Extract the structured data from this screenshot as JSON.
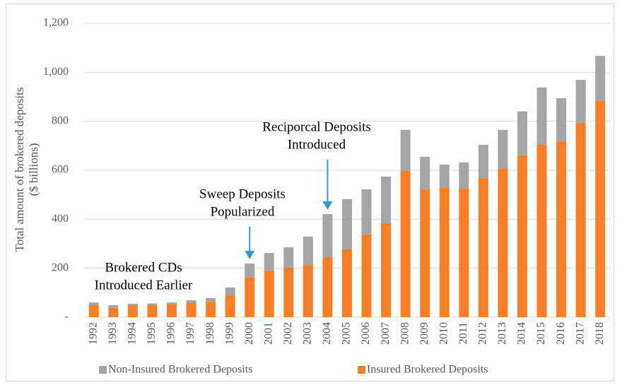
{
  "chart_data": {
    "type": "bar",
    "stacked": true,
    "y_label": [
      "Total amount of brokered deposits",
      "($ billions)"
    ],
    "categories": [
      "1992",
      "1993",
      "1994",
      "1995",
      "1996",
      "1997",
      "1998",
      "1999",
      "2000",
      "2001",
      "2002",
      "2003",
      "2004",
      "2005",
      "2006",
      "2007",
      "2008",
      "2009",
      "2010",
      "2011",
      "2012",
      "2013",
      "2014",
      "2015",
      "2016",
      "2017",
      "2018"
    ],
    "series": [
      {
        "name": "Non-Insured Brokered Deposits",
        "color": "#a5a5a5",
        "values": [
          11,
          11,
          6,
          7,
          8,
          9,
          15,
          32,
          55,
          72,
          83,
          116,
          176,
          205,
          184,
          190,
          168,
          133,
          95,
          107,
          136,
          159,
          179,
          234,
          176,
          176,
          184
        ]
      },
      {
        "name": "Insured Brokered Deposits",
        "color": "#f97f27",
        "values": [
          49,
          38,
          49,
          49,
          52,
          60,
          63,
          89,
          164,
          190,
          202,
          213,
          245,
          277,
          338,
          384,
          597,
          522,
          528,
          525,
          568,
          606,
          661,
          704,
          718,
          793,
          883
        ]
      }
    ],
    "ylim": [
      0,
      1200
    ],
    "yticks": [
      {
        "value": 0,
        "label": "-"
      },
      200,
      400,
      600,
      800,
      {
        "value": 1000,
        "label": "1,000"
      },
      {
        "value": 1200,
        "label": "1,200"
      }
    ],
    "grid": true,
    "legend": "bottom",
    "annotations": [
      {
        "text": [
          "Brokered CDs",
          "Introduced Earlier"
        ]
      },
      {
        "text": [
          "Sweep Deposits",
          "Popularized"
        ]
      },
      {
        "text": [
          "Reciporcal Deposits",
          "Introduced"
        ]
      }
    ]
  }
}
